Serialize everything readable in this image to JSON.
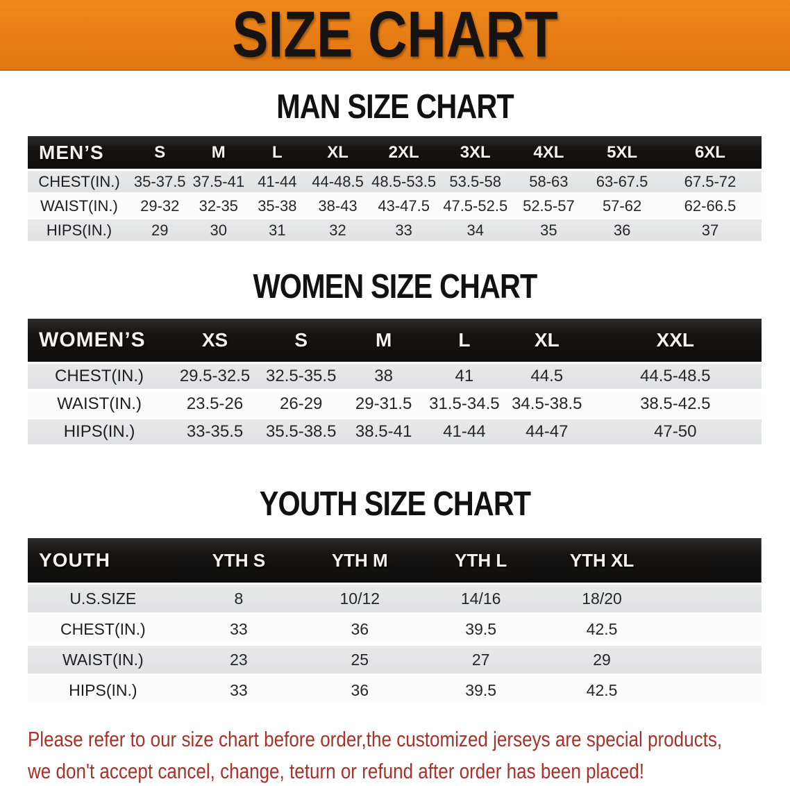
{
  "banner": {
    "title": "SIZE CHART"
  },
  "colors": {
    "banner_bg": "#E67D15",
    "table_header_bg": "#151413",
    "row_alt_bg": "#E3E3E4",
    "disclaimer_red": "#A93129"
  },
  "sections": [
    {
      "id": "men",
      "title": "MAN SIZE CHART",
      "table": {
        "corner_label": "MEN’S",
        "columns": [
          "S",
          "M",
          "L",
          "XL",
          "2XL",
          "3XL",
          "4XL",
          "5XL",
          "6XL"
        ],
        "rows": [
          {
            "label": "CHEST(IN.)",
            "values": [
              "35-37.5",
              "37.5-41",
              "41-44",
              "44-48.5",
              "48.5-53.5",
              "53.5-58",
              "58-63",
              "63-67.5",
              "67.5-72"
            ]
          },
          {
            "label": "WAIST(IN.)",
            "values": [
              "29-32",
              "32-35",
              "35-38",
              "38-43",
              "43-47.5",
              "47.5-52.5",
              "52.5-57",
              "57-62",
              "62-66.5"
            ]
          },
          {
            "label": "HIPS(IN.)",
            "values": [
              "29",
              "30",
              "31",
              "32",
              "33",
              "34",
              "35",
              "36",
              "37"
            ]
          }
        ]
      }
    },
    {
      "id": "women",
      "title": "WOMEN SIZE CHART",
      "table": {
        "corner_label": "WOMEN’S",
        "columns": [
          "XS",
          "S",
          "M",
          "L",
          "XL",
          "XXL"
        ],
        "rows": [
          {
            "label": "CHEST(IN.)",
            "values": [
              "29.5-32.5",
              "32.5-35.5",
              "38",
              "41",
              "44.5",
              "44.5-48.5"
            ]
          },
          {
            "label": "WAIST(IN.)",
            "values": [
              "23.5-26",
              "26-29",
              "29-31.5",
              "31.5-34.5",
              "34.5-38.5",
              "38.5-42.5"
            ]
          },
          {
            "label": "HIPS(IN.)",
            "values": [
              "33-35.5",
              "35.5-38.5",
              "38.5-41",
              "41-44",
              "44-47",
              "47-50"
            ]
          }
        ]
      }
    },
    {
      "id": "youth",
      "title": "YOUTH SIZE CHART",
      "table": {
        "corner_label": "YOUTH",
        "columns": [
          "YTH S",
          "YTH M",
          "YTH L",
          "YTH XL"
        ],
        "spacer": true,
        "rows": [
          {
            "label": "U.S.SIZE",
            "values": [
              "8",
              "10/12",
              "14/16",
              "18/20"
            ]
          },
          {
            "label": "CHEST(IN.)",
            "values": [
              "33",
              "36",
              "39.5",
              "42.5"
            ]
          },
          {
            "label": "WAIST(IN.)",
            "values": [
              "23",
              "25",
              "27",
              "29"
            ]
          },
          {
            "label": "HIPS(IN.)",
            "values": [
              "33",
              "36",
              "39.5",
              "42.5"
            ]
          }
        ]
      }
    }
  ],
  "disclaimer": {
    "line1": "Please refer to our size chart before order,the customized jerseys are special products,",
    "line2": "we don't accept cancel, change, teturn or refund after order has been placed!"
  }
}
